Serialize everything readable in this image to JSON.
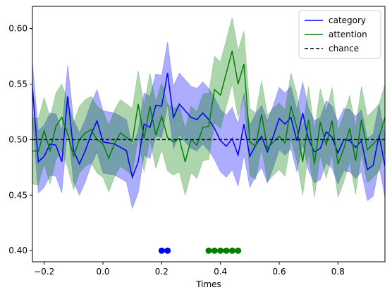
{
  "chart_data": {
    "type": "line",
    "xlabel": "Times",
    "ylabel": "",
    "title": "",
    "xlim": [
      -0.24,
      0.96
    ],
    "ylim": [
      0.39,
      0.62
    ],
    "x_ticks": [
      -0.2,
      0.0,
      0.2,
      0.4,
      0.6,
      0.8
    ],
    "x_tick_labels": [
      "−0.2",
      "0.0",
      "0.2",
      "0.4",
      "0.6",
      "0.8"
    ],
    "y_ticks": [
      0.4,
      0.45,
      0.5,
      0.55,
      0.6
    ],
    "y_tick_labels": [
      "0.40",
      "0.45",
      "0.50",
      "0.55",
      "0.60"
    ],
    "grid": false,
    "legend_position": "top-right",
    "x": [
      -0.24,
      -0.22,
      -0.2,
      -0.18,
      -0.16,
      -0.14,
      -0.12,
      -0.1,
      -0.08,
      -0.06,
      -0.04,
      -0.02,
      0.0,
      0.02,
      0.04,
      0.06,
      0.08,
      0.1,
      0.12,
      0.14,
      0.16,
      0.18,
      0.2,
      0.22,
      0.24,
      0.26,
      0.28,
      0.3,
      0.32,
      0.34,
      0.36,
      0.38,
      0.4,
      0.42,
      0.44,
      0.46,
      0.48,
      0.5,
      0.52,
      0.54,
      0.56,
      0.58,
      0.6,
      0.62,
      0.64,
      0.66,
      0.68,
      0.7,
      0.72,
      0.74,
      0.76,
      0.78,
      0.8,
      0.82,
      0.84,
      0.86,
      0.88,
      0.9,
      0.92,
      0.94,
      0.96
    ],
    "series": [
      {
        "name": "category",
        "color": "#0000ff",
        "style": "solid",
        "values": [
          0.547,
          0.48,
          0.485,
          0.496,
          0.495,
          0.48,
          0.539,
          0.49,
          0.478,
          0.49,
          0.505,
          0.517,
          0.498,
          0.497,
          0.496,
          0.493,
          0.49,
          0.466,
          0.48,
          0.514,
          0.511,
          0.531,
          0.53,
          0.56,
          0.52,
          0.532,
          0.526,
          0.52,
          0.518,
          0.524,
          0.518,
          0.51,
          0.499,
          0.494,
          0.501,
          0.486,
          0.514,
          0.485,
          0.495,
          0.503,
          0.489,
          0.503,
          0.519,
          0.514,
          0.52,
          0.499,
          0.524,
          0.5,
          0.489,
          0.492,
          0.507,
          0.502,
          0.488,
          0.5,
          0.499,
          0.493,
          0.499,
          0.473,
          0.477,
          0.504,
          0.476
        ],
        "upper": [
          0.57,
          0.508,
          0.513,
          0.524,
          0.523,
          0.508,
          0.567,
          0.518,
          0.506,
          0.518,
          0.533,
          0.545,
          0.526,
          0.525,
          0.524,
          0.521,
          0.518,
          0.494,
          0.508,
          0.542,
          0.539,
          0.559,
          0.558,
          0.588,
          0.548,
          0.56,
          0.554,
          0.548,
          0.546,
          0.552,
          0.546,
          0.538,
          0.527,
          0.522,
          0.529,
          0.514,
          0.542,
          0.513,
          0.523,
          0.531,
          0.517,
          0.531,
          0.547,
          0.542,
          0.548,
          0.527,
          0.552,
          0.528,
          0.517,
          0.52,
          0.535,
          0.53,
          0.516,
          0.528,
          0.527,
          0.521,
          0.527,
          0.501,
          0.505,
          0.532,
          0.504
        ],
        "lower": [
          0.519,
          0.452,
          0.457,
          0.468,
          0.467,
          0.452,
          0.511,
          0.462,
          0.45,
          0.462,
          0.477,
          0.489,
          0.47,
          0.469,
          0.468,
          0.465,
          0.462,
          0.438,
          0.452,
          0.486,
          0.483,
          0.503,
          0.502,
          0.532,
          0.492,
          0.504,
          0.498,
          0.492,
          0.49,
          0.496,
          0.49,
          0.482,
          0.471,
          0.466,
          0.473,
          0.458,
          0.486,
          0.457,
          0.467,
          0.475,
          0.461,
          0.475,
          0.491,
          0.486,
          0.492,
          0.471,
          0.496,
          0.472,
          0.461,
          0.464,
          0.479,
          0.474,
          0.46,
          0.472,
          0.471,
          0.465,
          0.471,
          0.445,
          0.449,
          0.476,
          0.448
        ]
      },
      {
        "name": "attention",
        "color": "#008000",
        "style": "solid",
        "values": [
          0.49,
          0.489,
          0.508,
          0.49,
          0.512,
          0.52,
          0.505,
          0.485,
          0.5,
          0.506,
          0.509,
          0.5,
          0.496,
          0.483,
          0.497,
          0.506,
          0.502,
          0.498,
          0.532,
          0.501,
          0.53,
          0.504,
          0.521,
          0.502,
          0.498,
          0.501,
          0.48,
          0.5,
          0.495,
          0.511,
          0.512,
          0.545,
          0.54,
          0.56,
          0.58,
          0.55,
          0.568,
          0.498,
          0.494,
          0.523,
          0.492,
          0.498,
          0.503,
          0.497,
          0.53,
          0.511,
          0.48,
          0.518,
          0.478,
          0.516,
          0.495,
          0.517,
          0.478,
          0.492,
          0.51,
          0.481,
          0.518,
          0.491,
          0.496,
          0.502,
          0.52
        ],
        "upper": [
          0.52,
          0.519,
          0.538,
          0.52,
          0.542,
          0.55,
          0.535,
          0.515,
          0.53,
          0.536,
          0.539,
          0.53,
          0.526,
          0.513,
          0.527,
          0.536,
          0.532,
          0.528,
          0.562,
          0.531,
          0.56,
          0.534,
          0.551,
          0.532,
          0.528,
          0.531,
          0.51,
          0.53,
          0.525,
          0.541,
          0.542,
          0.575,
          0.57,
          0.59,
          0.61,
          0.58,
          0.598,
          0.528,
          0.524,
          0.553,
          0.522,
          0.528,
          0.533,
          0.527,
          0.56,
          0.541,
          0.51,
          0.548,
          0.508,
          0.546,
          0.525,
          0.547,
          0.508,
          0.522,
          0.54,
          0.511,
          0.548,
          0.521,
          0.526,
          0.532,
          0.55
        ],
        "lower": [
          0.46,
          0.459,
          0.478,
          0.46,
          0.482,
          0.49,
          0.475,
          0.455,
          0.47,
          0.476,
          0.479,
          0.47,
          0.466,
          0.453,
          0.467,
          0.476,
          0.472,
          0.468,
          0.502,
          0.471,
          0.5,
          0.474,
          0.491,
          0.472,
          0.468,
          0.471,
          0.45,
          0.47,
          0.465,
          0.481,
          0.482,
          0.515,
          0.51,
          0.53,
          0.55,
          0.52,
          0.538,
          0.468,
          0.464,
          0.493,
          0.462,
          0.468,
          0.473,
          0.467,
          0.5,
          0.481,
          0.45,
          0.488,
          0.448,
          0.486,
          0.465,
          0.487,
          0.448,
          0.462,
          0.48,
          0.451,
          0.488,
          0.461,
          0.466,
          0.472,
          0.49
        ]
      },
      {
        "name": "chance",
        "color": "#000000",
        "style": "dashed",
        "constant": 0.5
      }
    ],
    "significance_markers": [
      {
        "series": "category",
        "color": "#0000ff",
        "y": 0.4,
        "x": [
          0.2,
          0.22
        ]
      },
      {
        "series": "attention",
        "color": "#008000",
        "y": 0.4,
        "x": [
          0.36,
          0.38,
          0.4,
          0.42,
          0.44,
          0.46
        ]
      }
    ]
  }
}
